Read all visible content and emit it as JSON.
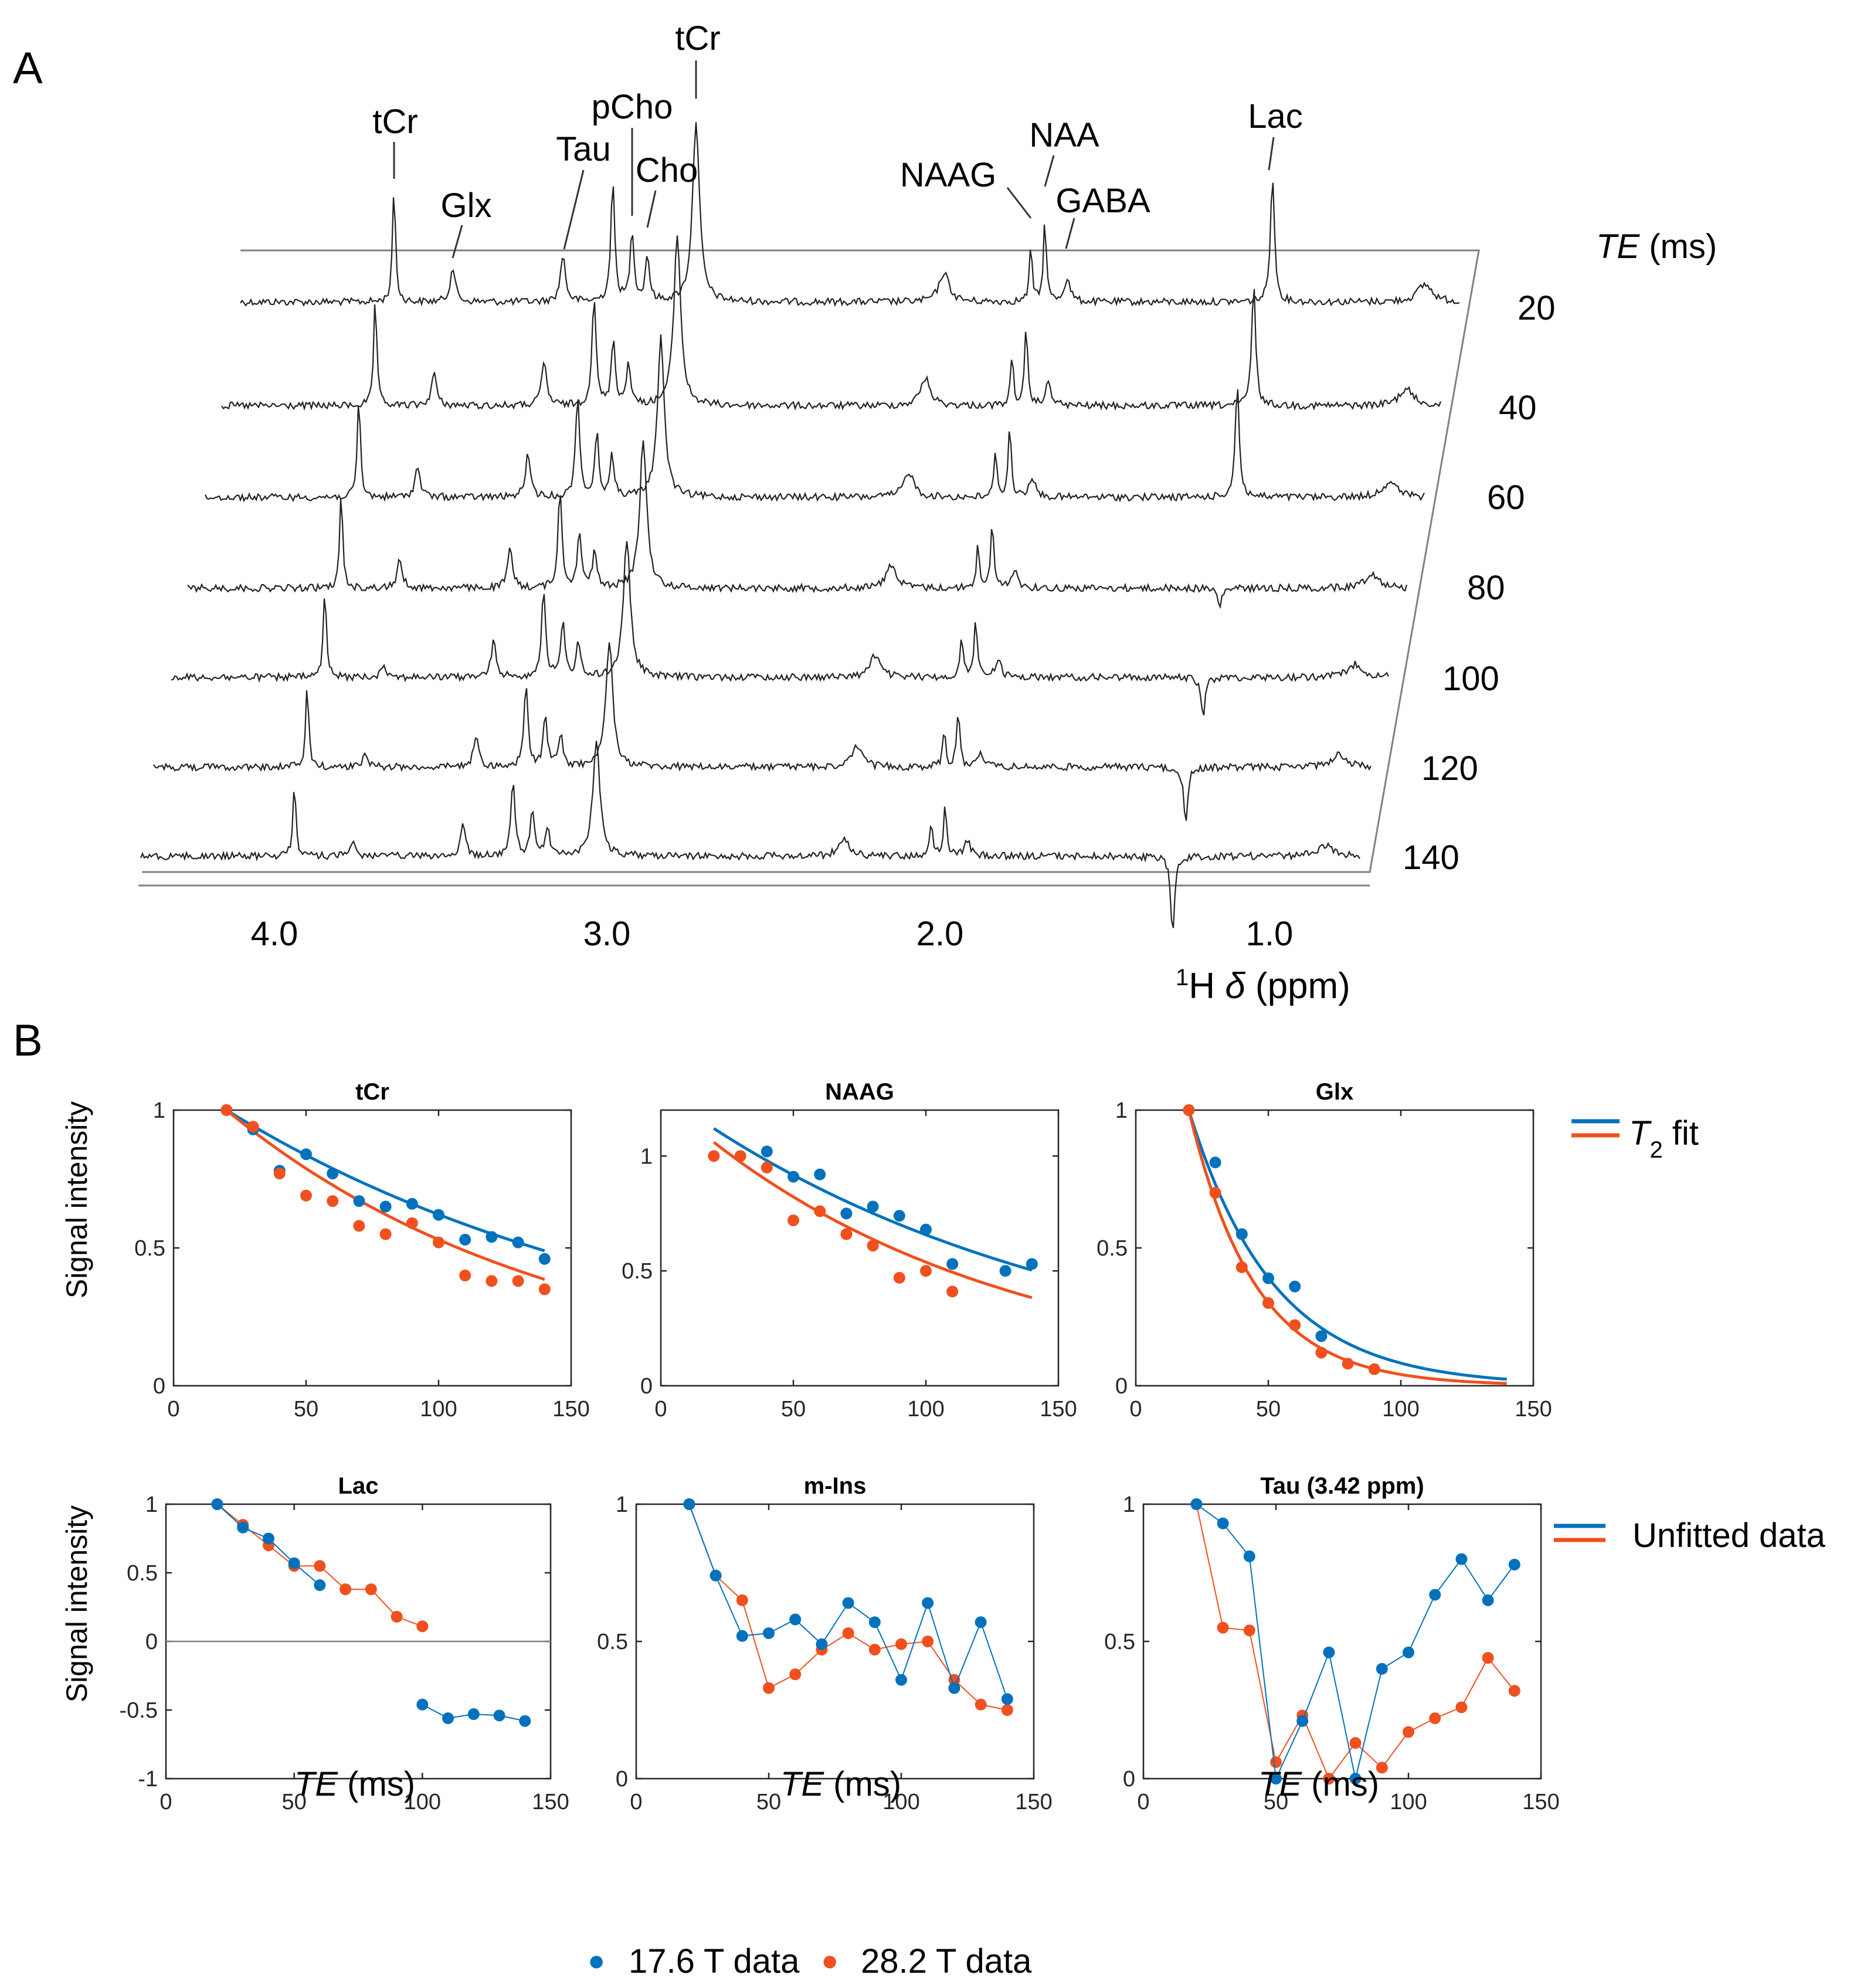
{
  "panels": {
    "a": "A",
    "b": "B"
  },
  "stack": {
    "te_title_var": "TE",
    "te_title_unit": " (ms)",
    "te_values": [
      "20",
      "40",
      "60",
      "80",
      "100",
      "120",
      "140"
    ],
    "ppm_ticks": [
      "4.0",
      "3.0",
      "2.0",
      "1.0"
    ],
    "ppm_axis_sup": "1",
    "ppm_axis_h": "H ",
    "ppm_axis_delta": "δ",
    "ppm_axis_unit": " (ppm)",
    "peak_labels": [
      "tCr",
      "Glx",
      "Tau",
      "pCho",
      "Cho",
      "tCr",
      "NAAG",
      "NAA",
      "GABA",
      "Lac"
    ]
  },
  "colors": {
    "t176": "#0072BD",
    "t282": "#F0501E",
    "axis": "#262626",
    "frame": "#808080",
    "trace": "#222222"
  },
  "legend": {
    "fit_var": "T",
    "fit_sub": "2",
    "fit_rest": " fit",
    "unfitted": "Unfitted data",
    "series176": "17.6 T data",
    "series282": "28.2 T data",
    "marker": "●"
  },
  "axis_labels": {
    "ylabel": "Signal intensity",
    "xlabel_var": "TE",
    "xlabel_unit": " (ms)"
  },
  "chart_data": [
    {
      "type": "line",
      "title": "tCr",
      "xlim": [
        0,
        150
      ],
      "ylim": [
        0,
        1
      ],
      "xticks": [
        "0",
        "50",
        "100",
        "150"
      ],
      "yticks": [
        "0",
        "0.5",
        "1"
      ],
      "fit": true,
      "fit_t2": {
        "s176": 168,
        "s282": 126
      },
      "series": [
        {
          "name": "17.6 T data",
          "x": [
            20,
            30,
            40,
            50,
            60,
            70,
            80,
            90,
            100,
            110,
            120,
            130,
            140
          ],
          "y": [
            1.0,
            0.93,
            0.78,
            0.84,
            0.77,
            0.67,
            0.65,
            0.66,
            0.62,
            0.53,
            0.54,
            0.52,
            0.46
          ]
        },
        {
          "name": "28.2 T data",
          "x": [
            20,
            30,
            40,
            50,
            60,
            70,
            80,
            90,
            100,
            110,
            120,
            130,
            140
          ],
          "y": [
            1.0,
            0.94,
            0.77,
            0.69,
            0.67,
            0.58,
            0.55,
            0.59,
            0.52,
            0.4,
            0.38,
            0.38,
            0.35
          ]
        }
      ]
    },
    {
      "type": "line",
      "title": "NAAG",
      "xlim": [
        0,
        150
      ],
      "ylim": [
        0,
        1.2
      ],
      "xticks": [
        "0",
        "50",
        "100",
        "150"
      ],
      "yticks": [
        "0",
        "0.5",
        "1"
      ],
      "fit": true,
      "fit_t2": {
        "s176": 150,
        "s282": 118
      },
      "series": [
        {
          "name": "17.6 T data",
          "x": [
            30,
            40,
            50,
            60,
            70,
            80,
            90,
            100,
            110,
            130,
            140
          ],
          "y": [
            1.0,
            1.02,
            0.91,
            0.92,
            0.75,
            0.78,
            0.74,
            0.68,
            0.53,
            0.5,
            0.53
          ]
        },
        {
          "name": "28.2 T data",
          "x": [
            20,
            30,
            40,
            50,
            60,
            70,
            80,
            90,
            100,
            110
          ],
          "y": [
            1.0,
            1.0,
            0.95,
            0.72,
            0.76,
            0.66,
            0.61,
            0.47,
            0.5,
            0.41
          ]
        }
      ]
    },
    {
      "type": "line",
      "title": "Glx",
      "xlim": [
        0,
        150
      ],
      "ylim": [
        0,
        1
      ],
      "xticks": [
        "0",
        "50",
        "100",
        "150"
      ],
      "yticks": [
        "0",
        "0.5",
        "1"
      ],
      "fit": true,
      "fit_t2": {
        "s176": 32,
        "s282": 25
      },
      "series": [
        {
          "name": "17.6 T data",
          "x": [
            20,
            30,
            40,
            50,
            60,
            70
          ],
          "y": [
            1.0,
            0.81,
            0.55,
            0.39,
            0.36,
            0.18
          ]
        },
        {
          "name": "28.2 T data",
          "x": [
            20,
            30,
            40,
            50,
            60,
            70,
            80,
            90
          ],
          "y": [
            1.0,
            0.7,
            0.43,
            0.3,
            0.22,
            0.12,
            0.08,
            0.06
          ]
        }
      ]
    },
    {
      "type": "line",
      "title": "Lac",
      "xlim": [
        0,
        150
      ],
      "ylim": [
        -1,
        1
      ],
      "xticks": [
        "0",
        "50",
        "100",
        "150"
      ],
      "yticks": [
        "-1",
        "-0.5",
        "0",
        "0.5",
        "1"
      ],
      "fit": false,
      "zero_line": true,
      "series": [
        {
          "name": "17.6 T data",
          "segments": [
            {
              "x": [
                20,
                30,
                40,
                50,
                60
              ],
              "y": [
                1.0,
                0.83,
                0.75,
                0.57,
                0.41
              ]
            },
            {
              "x": [
                100,
                110,
                120,
                130,
                140
              ],
              "y": [
                -0.46,
                -0.56,
                -0.53,
                -0.54,
                -0.58
              ]
            }
          ]
        },
        {
          "name": "28.2 T data",
          "segments": [
            {
              "x": [
                20,
                30,
                40,
                50,
                60,
                70,
                80,
                90,
                100
              ],
              "y": [
                1.0,
                0.85,
                0.7,
                0.55,
                0.55,
                0.38,
                0.38,
                0.18,
                0.11
              ]
            }
          ]
        }
      ]
    },
    {
      "type": "line",
      "title": "m-Ins",
      "xlim": [
        0,
        150
      ],
      "ylim": [
        0,
        1
      ],
      "xticks": [
        "0",
        "50",
        "100",
        "150"
      ],
      "yticks": [
        "0",
        "0.5",
        "1"
      ],
      "fit": false,
      "series": [
        {
          "name": "17.6 T data",
          "x": [
            20,
            30,
            40,
            50,
            60,
            70,
            80,
            90,
            100,
            110,
            120,
            130,
            140
          ],
          "y": [
            1.0,
            0.74,
            0.52,
            0.53,
            0.58,
            0.49,
            0.64,
            0.57,
            0.36,
            0.64,
            0.33,
            0.57,
            0.29
          ]
        },
        {
          "name": "28.2 T data",
          "x": [
            20,
            30,
            40,
            50,
            60,
            70,
            80,
            90,
            100,
            110,
            120,
            130,
            140
          ],
          "y": [
            1.0,
            0.74,
            0.65,
            0.33,
            0.38,
            0.47,
            0.53,
            0.47,
            0.49,
            0.5,
            0.36,
            0.27,
            0.25
          ]
        }
      ]
    },
    {
      "type": "line",
      "title": "Tau (3.42 ppm)",
      "xlim": [
        0,
        150
      ],
      "ylim": [
        0,
        1
      ],
      "xticks": [
        "0",
        "50",
        "100",
        "150"
      ],
      "yticks": [
        "0",
        "0.5",
        "1"
      ],
      "fit": false,
      "series": [
        {
          "name": "17.6 T data",
          "x": [
            20,
            30,
            40,
            50,
            60,
            70,
            80,
            90,
            100,
            110,
            120,
            130,
            140
          ],
          "y": [
            1.0,
            0.93,
            0.81,
            0.0,
            0.21,
            0.46,
            0.0,
            0.4,
            0.46,
            0.67,
            0.8,
            0.65,
            0.78
          ]
        },
        {
          "name": "28.2 T data",
          "x": [
            20,
            30,
            40,
            50,
            60,
            70,
            80,
            90,
            100,
            110,
            120,
            130,
            140
          ],
          "y": [
            1.0,
            0.55,
            0.54,
            0.06,
            0.23,
            0.0,
            0.13,
            0.04,
            0.17,
            0.22,
            0.26,
            0.44,
            0.32
          ]
        }
      ]
    }
  ]
}
